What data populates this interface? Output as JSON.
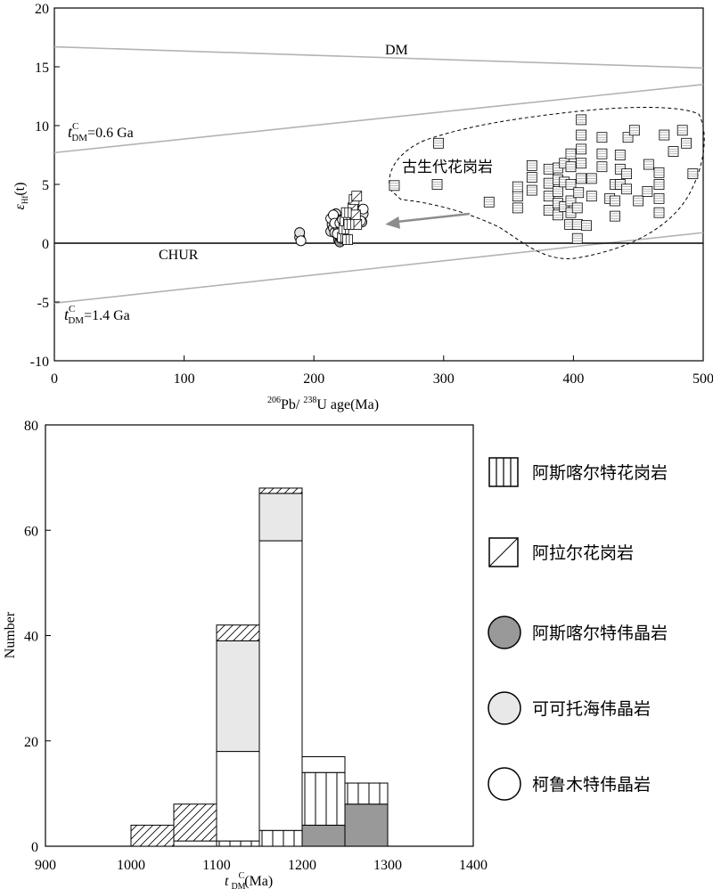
{
  "chart_data": [
    {
      "type": "scatter",
      "xlabel": {
        "sup1": "206",
        "pb": "Pb/ ",
        "sup2": "238",
        "rest": "U age(Ma)"
      },
      "ylabel": {
        "main": "ε",
        "sub": "Hf",
        "rest": "(t)"
      },
      "xlim": [
        0,
        500
      ],
      "ylim": [
        -10,
        20
      ],
      "x_ticks": [
        0,
        100,
        200,
        300,
        400,
        500
      ],
      "y_ticks": [
        -10,
        -5,
        0,
        5,
        10,
        15,
        20
      ],
      "reference_lines": [
        {
          "name": "DM",
          "label": "DM",
          "x": [
            0,
            500
          ],
          "y": [
            16.7,
            14.9
          ]
        },
        {
          "name": "tdm-0.6",
          "label": {
            "t": "t",
            "sup": "C",
            "sub": "DM",
            "value": "=0.6 Ga"
          },
          "x": [
            0,
            500
          ],
          "y": [
            7.7,
            13.5
          ]
        },
        {
          "name": "tdm-1.4",
          "label": {
            "t": "t",
            "sup": "C",
            "sub": "DM",
            "value": "=1.4 Ga"
          },
          "x": [
            0,
            500
          ],
          "y": [
            -5.1,
            0.9
          ]
        },
        {
          "name": "CHUR",
          "label": "CHUR",
          "x": [
            0,
            500
          ],
          "y": [
            0,
            0
          ]
        }
      ],
      "field_label": "古生代花岗岩",
      "arrow": {
        "from": [
          320,
          2.5
        ],
        "to": [
          255,
          1.6
        ]
      },
      "series": [
        {
          "name": "阿斯喀尔特伟晶岩",
          "marker": "circle",
          "color": "#999999",
          "points": [
            [
              219,
              0.3
            ],
            [
              219,
              0.7
            ],
            [
              220,
              0.1
            ],
            [
              221,
              0.4
            ]
          ]
        },
        {
          "name": "可可托海伟晶岩",
          "marker": "circle",
          "color": "#e6e6e6",
          "points": [
            [
              189,
              0.5
            ],
            [
              189,
              0.9
            ],
            [
              213,
              1.0
            ],
            [
              214,
              1.6
            ],
            [
              214,
              2.2
            ],
            [
              215,
              1.3
            ],
            [
              216,
              0.9
            ],
            [
              217,
              2.5
            ],
            [
              218,
              1.8
            ],
            [
              219,
              1.2
            ],
            [
              220,
              2.0
            ],
            [
              221,
              1.5
            ],
            [
              222,
              0.6
            ],
            [
              235,
              2.2
            ],
            [
              236,
              2.8
            ],
            [
              237,
              1.8
            ],
            [
              238,
              2.5
            ]
          ]
        },
        {
          "name": "柯鲁木特伟晶岩",
          "marker": "circle",
          "color": "#ffffff",
          "points": [
            [
              190,
              0.2
            ],
            [
              213,
              2.1
            ],
            [
              215,
              2.4
            ],
            [
              216,
              1.7
            ],
            [
              218,
              0.8
            ],
            [
              220,
              1.7
            ],
            [
              222,
              2.0
            ],
            [
              224,
              1.4
            ],
            [
              236,
              1.9
            ],
            [
              238,
              2.9
            ]
          ]
        },
        {
          "name": "阿拉尔花岗岩",
          "marker": "square-hatch",
          "color": "#ffffff",
          "points": [
            [
              230,
              3.0
            ],
            [
              231,
              3.7
            ],
            [
              232,
              2.4
            ],
            [
              233,
              4.0
            ],
            [
              233,
              1.6
            ]
          ]
        },
        {
          "name": "阿斯喀尔特花岗岩",
          "marker": "square-vlines",
          "color": "#ffffff",
          "points": [
            [
              222,
              0.5
            ],
            [
              223,
              1.2
            ],
            [
              224,
              1.9
            ],
            [
              225,
              2.6
            ],
            [
              226,
              0.3
            ],
            [
              227,
              1.6
            ]
          ]
        },
        {
          "name": "古生代花岗岩",
          "marker": "square-lines",
          "color": "#ffffff",
          "points": [
            [
              262,
              4.9
            ],
            [
              295,
              5.0
            ],
            [
              296,
              8.5
            ],
            [
              335,
              3.5
            ],
            [
              357,
              3.0
            ],
            [
              357,
              4.0
            ],
            [
              357,
              4.8
            ],
            [
              368,
              4.5
            ],
            [
              368,
              5.6
            ],
            [
              368,
              6.6
            ],
            [
              381,
              2.8
            ],
            [
              381,
              4.0
            ],
            [
              381,
              5.1
            ],
            [
              381,
              6.3
            ],
            [
              388,
              2.4
            ],
            [
              388,
              3.4
            ],
            [
              388,
              4.4
            ],
            [
              388,
              5.4
            ],
            [
              388,
              6.4
            ],
            [
              393,
              3.1
            ],
            [
              393,
              5.2
            ],
            [
              393,
              6.8
            ],
            [
              397,
              1.6
            ],
            [
              398,
              2.6
            ],
            [
              398,
              3.6
            ],
            [
              398,
              5.0
            ],
            [
              398,
              6.5
            ],
            [
              398,
              7.6
            ],
            [
              403,
              0.4
            ],
            [
              403,
              1.6
            ],
            [
              403,
              3.0
            ],
            [
              404,
              4.3
            ],
            [
              406,
              5.5
            ],
            [
              406,
              6.8
            ],
            [
              406,
              8.0
            ],
            [
              406,
              9.2
            ],
            [
              406,
              10.5
            ],
            [
              410,
              1.5
            ],
            [
              414,
              4.0
            ],
            [
              414,
              5.5
            ],
            [
              422,
              6.5
            ],
            [
              422,
              7.6
            ],
            [
              422,
              9.0
            ],
            [
              428,
              3.8
            ],
            [
              432,
              2.3
            ],
            [
              432,
              3.6
            ],
            [
              432,
              5.0
            ],
            [
              436,
              5.0
            ],
            [
              436,
              6.3
            ],
            [
              436,
              7.5
            ],
            [
              441,
              4.6
            ],
            [
              441,
              5.9
            ],
            [
              442,
              9.0
            ],
            [
              447,
              9.6
            ],
            [
              450,
              3.6
            ],
            [
              457,
              4.4
            ],
            [
              458,
              6.7
            ],
            [
              466,
              2.6
            ],
            [
              466,
              3.8
            ],
            [
              466,
              5.0
            ],
            [
              466,
              6.0
            ],
            [
              470,
              9.2
            ],
            [
              477,
              7.8
            ],
            [
              484,
              9.6
            ],
            [
              487,
              8.5
            ],
            [
              492,
              5.9
            ]
          ]
        }
      ]
    },
    {
      "type": "bar",
      "stacked": true,
      "xlabel": {
        "t": "t",
        "sub": "DM",
        "sup": "C",
        "rest": "(Ma)"
      },
      "ylabel": "Number",
      "xlim": [
        900,
        1400
      ],
      "ylim": [
        0,
        80
      ],
      "x_ticks": [
        900,
        1000,
        1100,
        1200,
        1300,
        1400
      ],
      "y_ticks": [
        0,
        20,
        40,
        60,
        80
      ],
      "bin_width": 50,
      "bins": [
        1000,
        1050,
        1100,
        1150,
        1200,
        1250
      ],
      "series": [
        {
          "name": "阿斯喀尔特伟晶岩",
          "pattern": "solid-gray",
          "values": [
            0,
            0,
            0,
            0,
            4,
            8
          ]
        },
        {
          "name": "阿斯喀尔特花岗岩",
          "pattern": "vlines",
          "values": [
            0,
            0,
            1,
            3,
            10,
            4
          ]
        },
        {
          "name": "柯鲁木特伟晶岩",
          "pattern": "white",
          "values": [
            0,
            1,
            17,
            55,
            3,
            0
          ]
        },
        {
          "name": "可可托海伟晶岩",
          "pattern": "light-gray",
          "values": [
            0,
            0,
            21,
            9,
            0,
            0
          ]
        },
        {
          "name": "阿拉尔花岗岩",
          "pattern": "hatch",
          "values": [
            4,
            7,
            3,
            1,
            0,
            0
          ]
        }
      ],
      "legend": {
        "placement": "right",
        "items": [
          {
            "label": "阿斯喀尔特花岗岩",
            "symbol": "square-vlines"
          },
          {
            "label": "阿拉尔花岗岩",
            "symbol": "square-hatch"
          },
          {
            "label": "阿斯喀尔特伟晶岩",
            "symbol": "circle-dark"
          },
          {
            "label": "可可托海伟晶岩",
            "symbol": "circle-light"
          },
          {
            "label": "柯鲁木特伟晶岩",
            "symbol": "circle-white"
          }
        ]
      }
    }
  ]
}
